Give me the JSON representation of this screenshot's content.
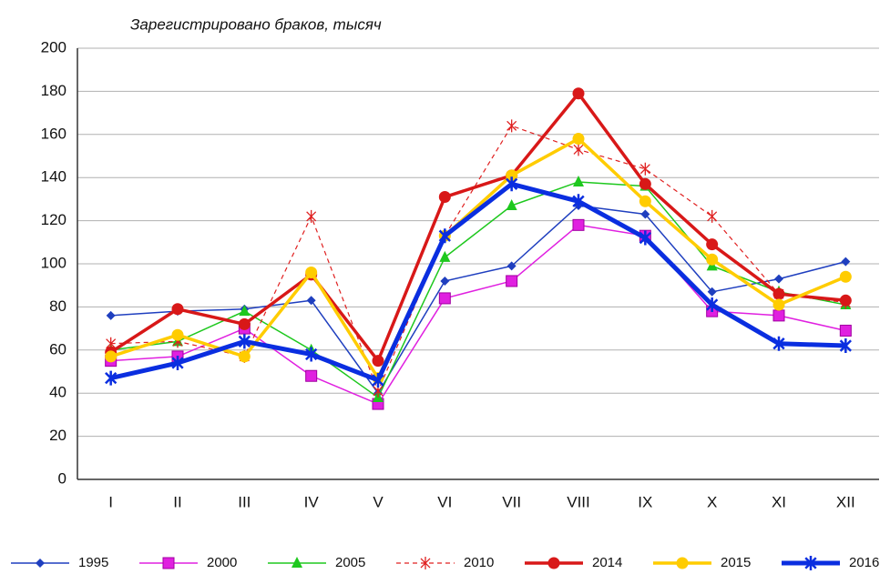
{
  "chart_data": {
    "type": "line",
    "title": "Зарегистрировано браков, тысяч",
    "categories": [
      "I",
      "II",
      "III",
      "IV",
      "V",
      "VI",
      "VII",
      "VIII",
      "IX",
      "X",
      "XI",
      "XII"
    ],
    "series": [
      {
        "name": "1995",
        "color": "#1f3fbf",
        "width": 1.5,
        "marker": "diamond",
        "dash": false,
        "values": [
          76,
          78,
          79,
          83,
          40,
          92,
          99,
          127,
          123,
          87,
          93,
          101
        ]
      },
      {
        "name": "2000",
        "color": "#e020e0",
        "width": 1.5,
        "marker": "square",
        "dash": false,
        "values": [
          55,
          57,
          70,
          48,
          35,
          84,
          92,
          118,
          113,
          78,
          76,
          69
        ]
      },
      {
        "name": "2005",
        "color": "#1ec81e",
        "width": 1.5,
        "marker": "triangle",
        "dash": false,
        "values": [
          60,
          64,
          78,
          60,
          38,
          103,
          127,
          138,
          136,
          99,
          87,
          81
        ]
      },
      {
        "name": "2010",
        "color": "#e02020",
        "width": 1.2,
        "marker": "asterisk",
        "dash": true,
        "values": [
          63,
          64,
          57,
          122,
          41,
          113,
          164,
          153,
          144,
          122,
          86,
          82
        ]
      },
      {
        "name": "2014",
        "color": "#d81818",
        "width": 3.5,
        "marker": "circle",
        "dash": false,
        "values": [
          59,
          79,
          72,
          95,
          55,
          131,
          141,
          179,
          137,
          109,
          86,
          83
        ]
      },
      {
        "name": "2015",
        "color": "#ffcc00",
        "width": 3.5,
        "marker": "circle",
        "dash": false,
        "values": [
          57,
          67,
          57,
          96,
          47,
          113,
          141,
          158,
          129,
          102,
          81,
          94
        ]
      },
      {
        "name": "2016",
        "color": "#0a2ee0",
        "width": 5,
        "marker": "asterisk",
        "dash": false,
        "values": [
          47,
          54,
          64,
          58,
          46,
          113,
          137,
          129,
          112,
          81,
          63,
          62
        ]
      }
    ],
    "ylim": [
      0,
      200
    ],
    "yticks": [
      0,
      20,
      40,
      60,
      80,
      100,
      120,
      140,
      160,
      180,
      200
    ],
    "grid": true,
    "legend": "bottom"
  }
}
